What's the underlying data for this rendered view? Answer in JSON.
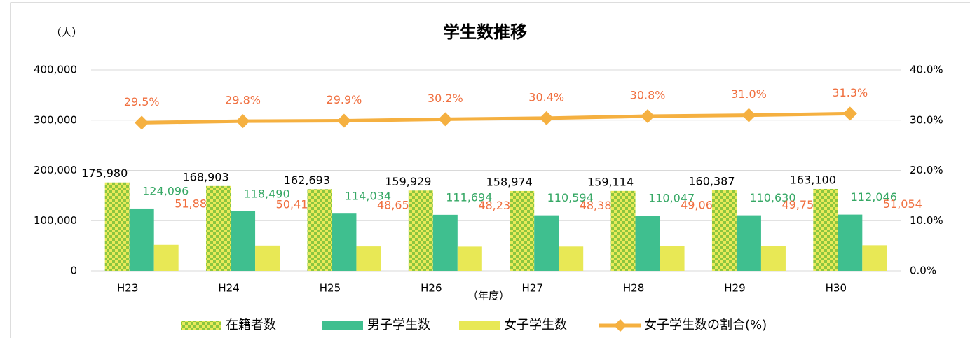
{
  "chart_data": {
    "type": "bar-line",
    "title": "学生数推移",
    "y_axis_label": "（人）",
    "x_axis_label": "（年度）",
    "categories": [
      "H23",
      "H24",
      "H25",
      "H26",
      "H27",
      "H28",
      "H29",
      "H30"
    ],
    "series": [
      {
        "name": "在籍者数",
        "type": "bar",
        "color": "#8cc63f",
        "pattern": "checkerboard",
        "pattern_color": "#eaea5a",
        "label_color": "#000000",
        "values": [
          175980,
          168903,
          162693,
          159929,
          158974,
          159114,
          160387,
          163100
        ],
        "value_labels": [
          "175,980",
          "168,903",
          "162,693",
          "159,929",
          "158,974",
          "159,114",
          "160,387",
          "163,100"
        ]
      },
      {
        "name": "男子学生数",
        "type": "bar",
        "color": "#3fbf8f",
        "label_color": "#36a865",
        "values": [
          124096,
          118490,
          114034,
          111694,
          110594,
          110047,
          110630,
          112046
        ],
        "value_labels": [
          "124,096",
          "118,490",
          "114,034",
          "111,694",
          "110,594",
          "110,047",
          "110,630",
          "112,046"
        ]
      },
      {
        "name": "女子学生数",
        "type": "bar",
        "color": "#e8e855",
        "label_color": "#f07040",
        "values": [
          51884,
          50413,
          48659,
          48235,
          48380,
          49067,
          49757,
          51054
        ],
        "value_labels": [
          "51,884",
          "50,413",
          "48,659",
          "48,235",
          "48,380",
          "49,067",
          "49,757",
          "51,054"
        ]
      },
      {
        "name": "女子学生数の割合(%)",
        "type": "line",
        "axis": "y2",
        "color": "#f5b040",
        "label_color": "#f07040",
        "values": [
          29.5,
          29.8,
          29.9,
          30.2,
          30.4,
          30.8,
          31.0,
          31.3
        ],
        "value_labels": [
          "29.5%",
          "29.8%",
          "29.9%",
          "30.2%",
          "30.4%",
          "30.8%",
          "31.0%",
          "31.3%"
        ]
      }
    ],
    "ylim": [
      0,
      400000
    ],
    "yticks": [
      0,
      {
        "value": 100000,
        "label": "100,000"
      },
      {
        "value": 200000,
        "label": "200,000"
      },
      {
        "value": 300000,
        "label": "300,000"
      },
      {
        "value": 400000,
        "label": "400,000"
      }
    ],
    "y2lim": [
      0,
      40
    ],
    "y2ticks": [
      {
        "value": 0,
        "label": "0.0%"
      },
      {
        "value": 10,
        "label": "10.0%"
      },
      {
        "value": 20,
        "label": "20.0%"
      },
      {
        "value": 30,
        "label": "30.0%"
      },
      {
        "value": 40,
        "label": "40.0%"
      }
    ],
    "grid": true,
    "legend": "bottom"
  }
}
